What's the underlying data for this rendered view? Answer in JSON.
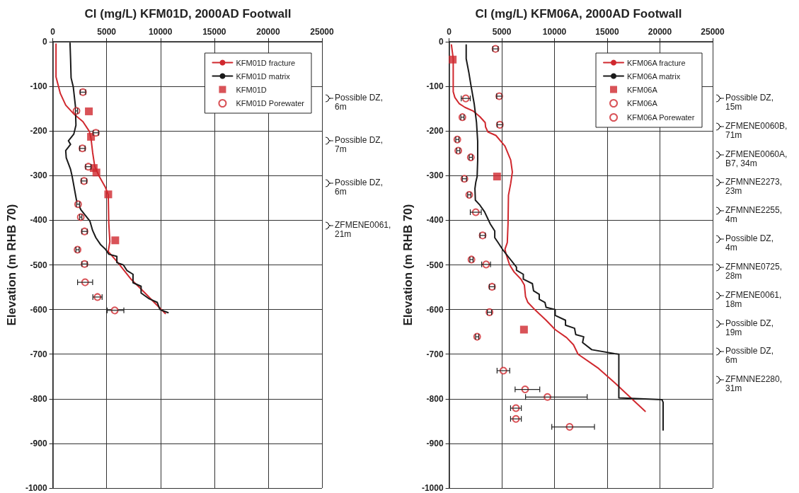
{
  "chart_data": [
    {
      "type": "scatter",
      "title": "Cl (mg/L) KFM01D, 2000AD Footwall",
      "ylabel": "Elevation (m RHB 70)",
      "xlim": [
        0,
        25000
      ],
      "xticks": [
        0,
        5000,
        10000,
        15000,
        20000,
        25000
      ],
      "ylim": [
        -1000,
        0
      ],
      "yticks": [
        -1000,
        -900,
        -800,
        -700,
        -600,
        -500,
        -400,
        -300,
        -200,
        -100,
        0
      ],
      "grid": true,
      "legend": "top right",
      "series": [
        {
          "name": "KFM01D fracture",
          "type": "line",
          "marker": "none",
          "color": "#d0282e",
          "x": [
            300,
            300,
            700,
            1200,
            2000,
            2800,
            3400,
            3550,
            3700,
            3900,
            4300,
            4900,
            5150,
            5200,
            5300,
            5150,
            6050,
            7300,
            8400,
            9500,
            10450
          ],
          "values": [
            -5,
            -79,
            -116,
            -142,
            -163,
            -179,
            -201,
            -217,
            -248,
            -280,
            -301,
            -327,
            -343,
            -406,
            -448,
            -470,
            -495,
            -533,
            -559,
            -586,
            -609
          ]
        },
        {
          "name": "KFM01D matrix",
          "type": "line",
          "marker": "none",
          "color": "#1a1a1a",
          "x": [
            1600,
            1650,
            1700,
            1900,
            2100,
            2150,
            1950,
            1450,
            1650,
            1200,
            1250,
            1650,
            1800,
            2200,
            2600,
            3450,
            3700,
            4000,
            4450,
            4900,
            5200,
            5950,
            5950,
            6550,
            6900,
            7450,
            7450,
            8200,
            8200,
            8950,
            9700,
            9950,
            10700
          ],
          "values": [
            -3,
            -38,
            -81,
            -101,
            -144,
            -187,
            -207,
            -222,
            -230,
            -244,
            -260,
            -286,
            -302,
            -355,
            -376,
            -402,
            -423,
            -439,
            -455,
            -465,
            -476,
            -481,
            -495,
            -500,
            -513,
            -521,
            -540,
            -548,
            -563,
            -576,
            -584,
            -600,
            -607
          ]
        },
        {
          "name": "KFM01D",
          "marker": "square",
          "color": "#d0282e",
          "x": [
            3350,
            3550,
            3800,
            4050,
            5150,
            5800
          ],
          "values": [
            -156,
            -213,
            -283,
            -293,
            -342,
            -445
          ]
        },
        {
          "name": "KFM01D Porewater",
          "marker": "circle",
          "color": "#d0282e",
          "x": [
            2800,
            2200,
            4000,
            2750,
            3300,
            2900,
            2350,
            2600,
            2950,
            2300,
            2950,
            3000,
            4150,
            5750
          ],
          "values": [
            -113,
            -155,
            -204,
            -239,
            -280,
            -312,
            -364,
            -393,
            -425,
            -466,
            -498,
            -539,
            -572,
            -602
          ],
          "xerrors": [
            250,
            100,
            250,
            250,
            250,
            250,
            150,
            100,
            250,
            150,
            250,
            700,
            430,
            [
              5050,
              6600
            ]
          ]
        }
      ],
      "annotations": [
        "Possible DZ, 6m",
        "Possible DZ, 7m",
        "Possible DZ, 6m",
        "ZFMENE0061, 21m"
      ]
    },
    {
      "type": "scatter",
      "title": "Cl (mg/L) KFM06A, 2000AD Footwall",
      "ylabel": "Elevation (m RHB 70)",
      "xlim": [
        0,
        25000
      ],
      "xticks": [
        0,
        5000,
        10000,
        15000,
        20000,
        25000
      ],
      "ylim": [
        -1000,
        0
      ],
      "yticks": [
        -1000,
        -900,
        -800,
        -700,
        -600,
        -500,
        -400,
        -300,
        -200,
        -100,
        0
      ],
      "grid": true,
      "legend": "top right",
      "series": [
        {
          "name": "KFM06A fracture",
          "type": "line",
          "marker": "none",
          "color": "#d0282e",
          "x": [
            220,
            390,
            390,
            550,
            970,
            1500,
            2270,
            2920,
            3420,
            3460,
            3680,
            4440,
            5300,
            5840,
            6000,
            5840,
            5630,
            5590,
            5520,
            5300,
            5410,
            5740,
            6170,
            6820,
            7140,
            7250,
            7470,
            8120,
            9200,
            10060,
            11150,
            11800,
            12230,
            14180,
            15700,
            18600
          ],
          "values": [
            -7,
            -38,
            -112,
            -125,
            -139,
            -147,
            -155,
            -168,
            -181,
            -191,
            -202,
            -210,
            -234,
            -265,
            -292,
            -318,
            -344,
            -408,
            -450,
            -465,
            -476,
            -500,
            -516,
            -532,
            -545,
            -571,
            -584,
            -600,
            -624,
            -645,
            -663,
            -679,
            -700,
            -732,
            -764,
            -828
          ]
        },
        {
          "name": "KFM06A matrix",
          "type": "line",
          "marker": "none",
          "color": "#1a1a1a",
          "x": [
            1620,
            1620,
            1880,
            2060,
            2380,
            2600,
            2710,
            2710,
            2660,
            2530,
            2450,
            2490,
            2920,
            3360,
            3680,
            3900,
            4330,
            4330,
            4650,
            5090,
            5520,
            6390,
            6390,
            7040,
            7040,
            7900,
            8010,
            8550,
            8550,
            9090,
            9200,
            10060,
            10060,
            11040,
            11040,
            11900,
            12010,
            12770,
            12660,
            13530,
            15690,
            16100,
            16100,
            20200,
            20300,
            20300
          ],
          "values": [
            -7,
            -38,
            -70,
            -96,
            -139,
            -181,
            -223,
            -265,
            -302,
            -315,
            -329,
            -355,
            -366,
            -381,
            -397,
            -408,
            -424,
            -439,
            -450,
            -466,
            -479,
            -505,
            -512,
            -521,
            -532,
            -542,
            -558,
            -566,
            -577,
            -584,
            -595,
            -600,
            -613,
            -624,
            -635,
            -642,
            -656,
            -661,
            -674,
            -690,
            -699,
            -700,
            -798,
            -802,
            -808,
            -870
          ]
        },
        {
          "name": "KFM06A",
          "marker": "square",
          "color": "#d0282e",
          "x": [
            340,
            4550,
            7100
          ],
          "values": [
            -40,
            -302,
            -645
          ]
        },
        {
          "name": "KFM06A",
          "marker": "circle",
          "color": "#d0282e",
          "x": [
            4400,
            4760,
            4810
          ],
          "values": [
            -16,
            -122,
            -186
          ],
          "xerrors": [
            250,
            250,
            250
          ]
        },
        {
          "name": "KFM06A Porewater",
          "marker": "circle",
          "color": "#d0282e",
          "x": [
            1580,
            1260,
            780,
            870,
            2060,
            1450,
            1910,
            2530,
            3180,
            2120,
            3510,
            4070,
            3830,
            2660,
            5150,
            7210,
            9330,
            6340,
            6340,
            11430
          ],
          "values": [
            -127,
            -169,
            -219,
            -244,
            -259,
            -307,
            -343,
            -382,
            -434,
            -488,
            -499,
            -549,
            -606,
            -661,
            -737,
            -779,
            -796,
            -821,
            -845,
            -863
          ],
          "xerrors": [
            430,
            150,
            150,
            150,
            150,
            200,
            150,
            520,
            250,
            150,
            420,
            250,
            200,
            150,
            600,
            [
              6260,
              8600
            ],
            [
              7250,
              13100
            ],
            510,
            510,
            [
              9740,
              13790
            ]
          ]
        }
      ],
      "annotations": [
        "Possible DZ, 15m",
        "ZFMENE0060B, 71m",
        "ZFMENE0060A, B7, 34m",
        "ZFMNNE2273, 23m",
        "ZFMNNE2255, 4m",
        "Possible DZ, 4m",
        "ZFMNNE0725, 28m",
        "ZFMENE0061, 18m",
        "Possible DZ, 19m",
        "Possible DZ, 6m",
        "ZFMNNE2280, 31m"
      ]
    }
  ]
}
